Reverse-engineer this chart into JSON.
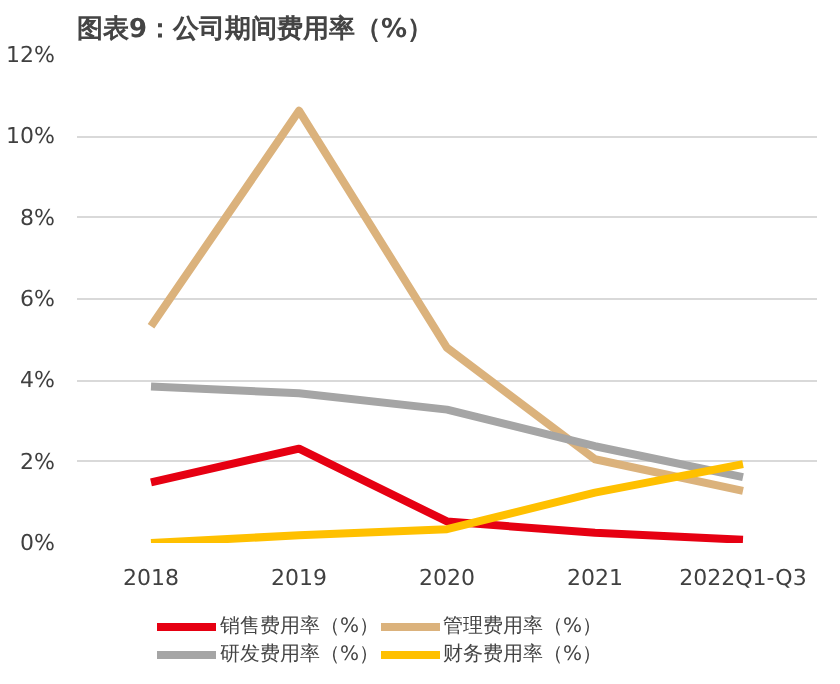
{
  "chart_data": {
    "type": "line",
    "title": "图表9：公司期间费用率（%）",
    "categories": [
      "2018",
      "2019",
      "2020",
      "2021",
      "2022Q1-Q3"
    ],
    "series": [
      {
        "name": "销售费用率（%）",
        "color": "#e60012",
        "values": [
          1.49,
          2.32,
          0.53,
          0.25,
          0.08
        ]
      },
      {
        "name": "管理费用率（%）",
        "color": "#dbb27c",
        "values": [
          5.33,
          10.63,
          4.8,
          2.06,
          1.28
        ]
      },
      {
        "name": "研发费用率（%）",
        "color": "#a5a5a5",
        "values": [
          3.85,
          3.68,
          3.28,
          2.38,
          1.62
        ]
      },
      {
        "name": "财务费用率（%）",
        "color": "#ffc000",
        "values": [
          0,
          0.19,
          0.34,
          1.24,
          1.94
        ]
      }
    ],
    "ylim": [
      0,
      12
    ],
    "yticks": [
      {
        "value": 0,
        "label": "0%"
      },
      {
        "value": 2,
        "label": "2%"
      },
      {
        "value": 4,
        "label": "4%"
      },
      {
        "value": 6,
        "label": "6%"
      },
      {
        "value": 8,
        "label": "8%"
      },
      {
        "value": 10,
        "label": "10%"
      },
      {
        "value": 12,
        "label": "12%"
      }
    ],
    "grid": "y",
    "legend": "bottom",
    "marker": "none",
    "line_style": "solid"
  }
}
